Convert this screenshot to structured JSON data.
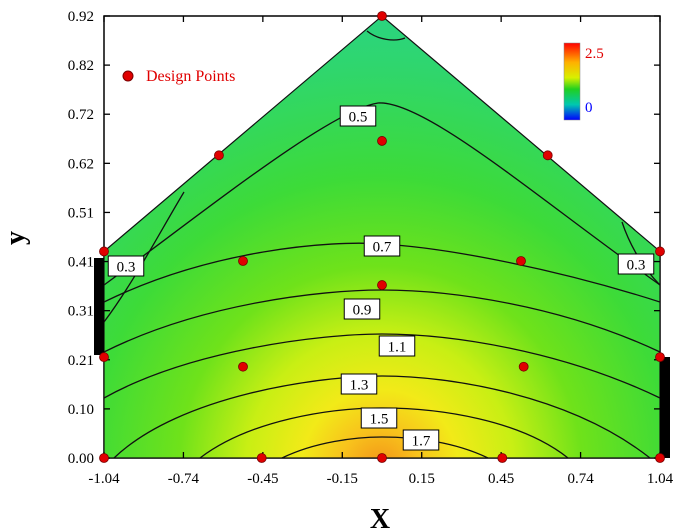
{
  "chart_data": {
    "type": "contour",
    "xlabel": "X",
    "ylabel": "y",
    "xlim": [
      -1.04,
      1.04
    ],
    "ylim": [
      0.0,
      0.92
    ],
    "x_ticks": [
      "-1.04",
      "-0.74",
      "-0.45",
      "-0.15",
      "0.15",
      "0.45",
      "0.74",
      "1.04"
    ],
    "y_ticks": [
      "0.00",
      "0.10",
      "0.21",
      "0.31",
      "0.41",
      "0.51",
      "0.62",
      "0.72",
      "0.82",
      "0.92"
    ],
    "region_vertices": [
      [
        -1.04,
        0.0
      ],
      [
        1.04,
        0.0
      ],
      [
        1.04,
        0.43
      ],
      [
        0.0,
        0.92
      ],
      [
        -1.04,
        0.43
      ]
    ],
    "contour_levels": [
      0.3,
      0.5,
      0.7,
      0.9,
      1.1,
      1.3,
      1.5,
      1.7
    ],
    "contour_labels": [
      "0.3",
      "0.5",
      "0.7",
      "0.9",
      "1.1",
      "1.3",
      "1.5",
      "1.7",
      "0.3"
    ],
    "colorbar": {
      "min_label": "0",
      "max_label": "2.5",
      "min_color": "#0000ff",
      "max_color": "#ff0000"
    },
    "legend": {
      "label": "Design Points",
      "marker_color": "#e00000",
      "position": "top-left"
    },
    "design_points": [
      {
        "x": -1.04,
        "y": 0.0
      },
      {
        "x": -0.45,
        "y": 0.0
      },
      {
        "x": 0.0,
        "y": 0.0
      },
      {
        "x": 0.45,
        "y": 0.0
      },
      {
        "x": 1.04,
        "y": 0.0
      },
      {
        "x": -0.52,
        "y": 0.19
      },
      {
        "x": 0.53,
        "y": 0.19
      },
      {
        "x": -1.04,
        "y": 0.21
      },
      {
        "x": 1.04,
        "y": 0.21
      },
      {
        "x": 0.0,
        "y": 0.36
      },
      {
        "x": -0.52,
        "y": 0.41
      },
      {
        "x": 0.52,
        "y": 0.41
      },
      {
        "x": -1.04,
        "y": 0.43
      },
      {
        "x": 1.04,
        "y": 0.43
      },
      {
        "x": 0.0,
        "y": 0.66
      },
      {
        "x": -0.61,
        "y": 0.63
      },
      {
        "x": 0.62,
        "y": 0.63
      },
      {
        "x": 0.0,
        "y": 0.92
      }
    ]
  }
}
